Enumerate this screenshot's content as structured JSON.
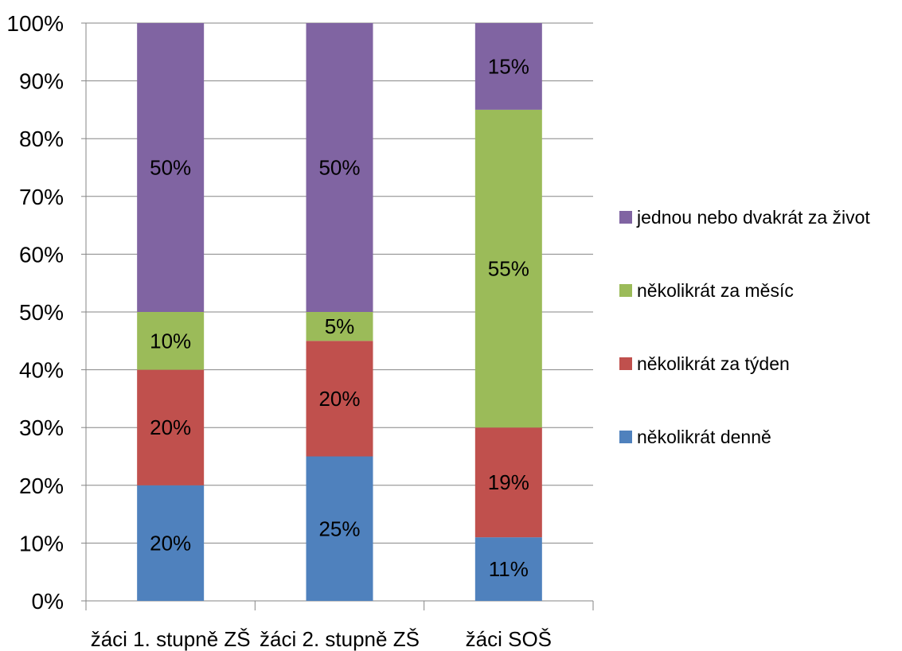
{
  "chart_data": {
    "type": "bar",
    "stacked": true,
    "percent": true,
    "categories": [
      "žáci 1. stupně ZŠ",
      "žáci 2. stupně ZŠ",
      "žáci SOŠ"
    ],
    "series": [
      {
        "name": "několikrát denně",
        "color": "#4F81BD",
        "values": [
          20,
          25,
          11
        ],
        "labels": [
          "20%",
          "25%",
          "11%"
        ]
      },
      {
        "name": "několikrát za týden",
        "color": "#C0504D",
        "values": [
          20,
          20,
          19
        ],
        "labels": [
          "20%",
          "20%",
          "19%"
        ]
      },
      {
        "name": "několikrát za měsíc",
        "color": "#9BBB59",
        "values": [
          10,
          5,
          55
        ],
        "labels": [
          "10%",
          "5%",
          "55%"
        ]
      },
      {
        "name": "jednou nebo dvakrát za život",
        "color": "#8064A2",
        "values": [
          50,
          50,
          15
        ],
        "labels": [
          "50%",
          "50%",
          "15%"
        ]
      }
    ],
    "ylim": [
      0,
      100
    ],
    "yticks": [
      "0%",
      "10%",
      "20%",
      "30%",
      "40%",
      "50%",
      "60%",
      "70%",
      "80%",
      "90%",
      "100%"
    ],
    "grid": true,
    "legend_position": "right",
    "title": "",
    "xlabel": "",
    "ylabel": ""
  }
}
